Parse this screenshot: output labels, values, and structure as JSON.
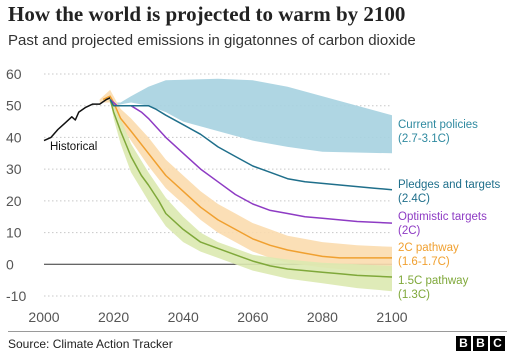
{
  "title": "How the world is projected to warm by 2100",
  "subtitle": "Past and projected emissions in gigatonnes of carbon dioxide",
  "source": "Source: Climate Action Tracker",
  "logo": [
    "B",
    "B",
    "C"
  ],
  "chart_data": {
    "type": "line",
    "title": "How the world is projected to warm by 2100",
    "subtitle": "Past and projected emissions in gigatonnes of carbon dioxide",
    "xlabel": "",
    "ylabel": "",
    "xlim": [
      2000,
      2100
    ],
    "ylim": [
      -10,
      60
    ],
    "x_ticks": [
      2000,
      2020,
      2040,
      2060,
      2080,
      2100
    ],
    "y_ticks": [
      -10,
      0,
      10,
      20,
      30,
      40,
      50,
      60
    ],
    "grid": "horizontal dotted",
    "zero_line": true,
    "series": [
      {
        "name": "Historical",
        "label_lines": [
          "Historical"
        ],
        "color": "#111111",
        "points": [
          [
            2000,
            39
          ],
          [
            2002,
            40
          ],
          [
            2004,
            42.5
          ],
          [
            2006,
            44.5
          ],
          [
            2008,
            46.5
          ],
          [
            2009,
            45.5
          ],
          [
            2010,
            48
          ],
          [
            2012,
            49.5
          ],
          [
            2014,
            50.5
          ],
          [
            2016,
            50.5
          ],
          [
            2018,
            52
          ],
          [
            2019,
            52.5
          ]
        ]
      },
      {
        "name": "Current policies",
        "label_lines": [
          "Current policies",
          "(2.7-3.1C)"
        ],
        "color": "#2f8aa0",
        "band_color": "#a6d2e0",
        "band_upper": [
          [
            2019,
            52.5
          ],
          [
            2020,
            51
          ],
          [
            2022,
            51
          ],
          [
            2025,
            53
          ],
          [
            2030,
            56
          ],
          [
            2035,
            58
          ],
          [
            2050,
            58.5
          ],
          [
            2060,
            58
          ],
          [
            2070,
            56
          ],
          [
            2080,
            53
          ],
          [
            2090,
            50
          ],
          [
            2100,
            47
          ]
        ],
        "band_lower": [
          [
            2019,
            52.5
          ],
          [
            2020,
            50
          ],
          [
            2025,
            51
          ],
          [
            2030,
            50
          ],
          [
            2035,
            48
          ],
          [
            2040,
            45
          ],
          [
            2050,
            42
          ],
          [
            2060,
            39
          ],
          [
            2070,
            37
          ],
          [
            2080,
            35.5
          ],
          [
            2100,
            35
          ]
        ]
      },
      {
        "name": "Pledges and targets",
        "label_lines": [
          "Pledges and targets",
          "(2.4C)"
        ],
        "color": "#1f6f8b",
        "points": [
          [
            2019,
            52
          ],
          [
            2020,
            50
          ],
          [
            2022,
            50
          ],
          [
            2025,
            50
          ],
          [
            2030,
            50
          ],
          [
            2032,
            49
          ],
          [
            2035,
            47
          ],
          [
            2040,
            44
          ],
          [
            2045,
            41
          ],
          [
            2050,
            37
          ],
          [
            2055,
            34
          ],
          [
            2060,
            31
          ],
          [
            2065,
            29
          ],
          [
            2070,
            27
          ],
          [
            2075,
            26
          ],
          [
            2080,
            25.5
          ],
          [
            2085,
            25
          ],
          [
            2090,
            24.5
          ],
          [
            2095,
            24
          ],
          [
            2100,
            23.5
          ]
        ]
      },
      {
        "name": "Optimistic targets",
        "label_lines": [
          "Optimistic targets",
          "(2C)"
        ],
        "color": "#8e3bc4",
        "points": [
          [
            2019,
            52
          ],
          [
            2021,
            50
          ],
          [
            2025,
            50
          ],
          [
            2028,
            48
          ],
          [
            2030,
            46
          ],
          [
            2035,
            40
          ],
          [
            2040,
            35
          ],
          [
            2045,
            30
          ],
          [
            2050,
            26
          ],
          [
            2055,
            22
          ],
          [
            2060,
            19
          ],
          [
            2065,
            17
          ],
          [
            2070,
            16
          ],
          [
            2075,
            15
          ],
          [
            2080,
            14.5
          ],
          [
            2085,
            14
          ],
          [
            2090,
            13.5
          ],
          [
            2100,
            13
          ]
        ]
      },
      {
        "name": "2C pathway",
        "label_lines": [
          "2C pathway",
          "(1.6-1.7C)"
        ],
        "color": "#f0a030",
        "band_color": "#fbdcae",
        "points": [
          [
            2017,
            52
          ],
          [
            2019,
            53
          ],
          [
            2020,
            51
          ],
          [
            2022,
            46
          ],
          [
            2025,
            42
          ],
          [
            2030,
            35
          ],
          [
            2035,
            28
          ],
          [
            2040,
            23
          ],
          [
            2045,
            18
          ],
          [
            2050,
            14
          ],
          [
            2055,
            11
          ],
          [
            2060,
            8
          ],
          [
            2065,
            6
          ],
          [
            2070,
            4.5
          ],
          [
            2075,
            3.5
          ],
          [
            2080,
            2.5
          ],
          [
            2085,
            2
          ],
          [
            2090,
            2
          ],
          [
            2100,
            2
          ]
        ],
        "band_upper": [
          [
            2016,
            52
          ],
          [
            2019,
            55
          ],
          [
            2020,
            53
          ],
          [
            2022,
            49
          ],
          [
            2025,
            46
          ],
          [
            2030,
            40
          ],
          [
            2035,
            33
          ],
          [
            2040,
            28
          ],
          [
            2045,
            23
          ],
          [
            2050,
            19
          ],
          [
            2055,
            16
          ],
          [
            2060,
            13
          ],
          [
            2065,
            11
          ],
          [
            2070,
            9
          ],
          [
            2080,
            7
          ],
          [
            2090,
            6
          ],
          [
            2100,
            5.5
          ]
        ],
        "band_lower": [
          [
            2016,
            51
          ],
          [
            2019,
            51
          ],
          [
            2020,
            49
          ],
          [
            2022,
            44
          ],
          [
            2025,
            39
          ],
          [
            2030,
            31
          ],
          [
            2035,
            24
          ],
          [
            2040,
            19
          ],
          [
            2045,
            14
          ],
          [
            2050,
            10
          ],
          [
            2055,
            7
          ],
          [
            2060,
            4
          ],
          [
            2065,
            2
          ],
          [
            2070,
            0.5
          ],
          [
            2080,
            -1
          ],
          [
            2090,
            -2
          ],
          [
            2100,
            -2
          ]
        ]
      },
      {
        "name": "1.5C pathway",
        "label_lines": [
          "1.5C pathway",
          "(1.3C)"
        ],
        "color": "#7fa83a",
        "band_color": "#dbe9b0",
        "points": [
          [
            2019,
            52
          ],
          [
            2020,
            48
          ],
          [
            2022,
            42
          ],
          [
            2025,
            34
          ],
          [
            2028,
            28
          ],
          [
            2030,
            25
          ],
          [
            2033,
            20
          ],
          [
            2035,
            16
          ],
          [
            2040,
            11
          ],
          [
            2045,
            7
          ],
          [
            2050,
            5
          ],
          [
            2055,
            3
          ],
          [
            2060,
            1
          ],
          [
            2065,
            -0.5
          ],
          [
            2070,
            -1.5
          ],
          [
            2075,
            -2
          ],
          [
            2080,
            -2.5
          ],
          [
            2085,
            -3
          ],
          [
            2090,
            -3.5
          ],
          [
            2100,
            -4
          ]
        ],
        "band_upper": [
          [
            2019,
            53
          ],
          [
            2020,
            51
          ],
          [
            2022,
            46
          ],
          [
            2025,
            38
          ],
          [
            2030,
            29
          ],
          [
            2035,
            21
          ],
          [
            2040,
            15
          ],
          [
            2045,
            10
          ],
          [
            2050,
            7
          ],
          [
            2055,
            5
          ],
          [
            2060,
            3
          ],
          [
            2070,
            1.5
          ],
          [
            2080,
            0.5
          ],
          [
            2090,
            0
          ],
          [
            2100,
            -0.5
          ]
        ],
        "band_lower": [
          [
            2019,
            52
          ],
          [
            2020,
            46
          ],
          [
            2022,
            38
          ],
          [
            2025,
            29
          ],
          [
            2030,
            20
          ],
          [
            2035,
            12
          ],
          [
            2040,
            7
          ],
          [
            2045,
            4
          ],
          [
            2050,
            2
          ],
          [
            2055,
            0
          ],
          [
            2060,
            -2
          ],
          [
            2070,
            -4.5
          ],
          [
            2080,
            -6
          ],
          [
            2090,
            -7.5
          ],
          [
            2100,
            -8.5
          ]
        ]
      }
    ]
  }
}
